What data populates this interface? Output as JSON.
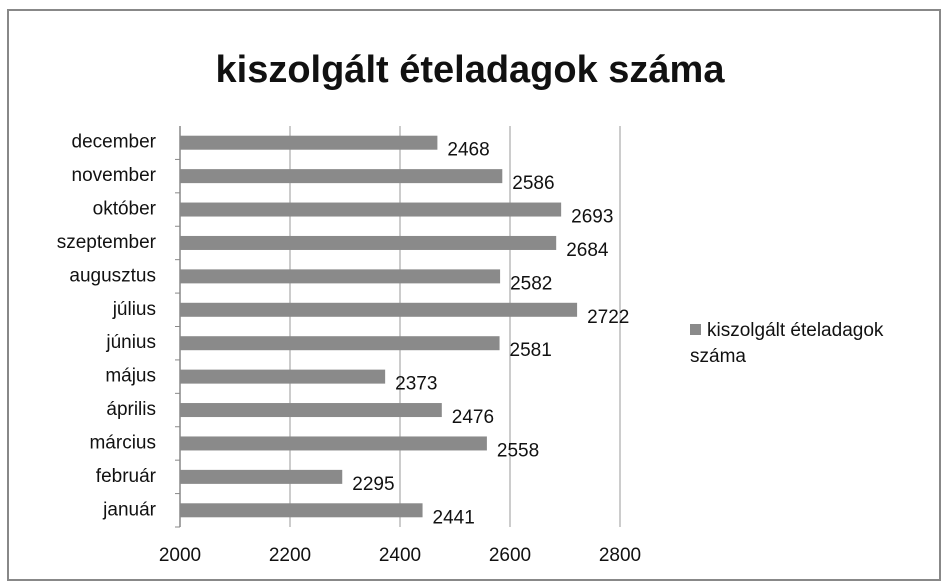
{
  "chart_data": {
    "type": "bar",
    "orientation": "horizontal",
    "title": "kiszolgált ételadagok száma",
    "categories": [
      "január",
      "február",
      "március",
      "április",
      "május",
      "június",
      "július",
      "augusztus",
      "szeptember",
      "október",
      "november",
      "december"
    ],
    "series": [
      {
        "name": "kiszolgált ételadagok száma",
        "color": "#8a8a8a",
        "values": [
          2441,
          2295,
          2558,
          2476,
          2373,
          2581,
          2722,
          2582,
          2684,
          2693,
          2586,
          2468
        ]
      }
    ],
    "xlim": [
      2000,
      2800
    ],
    "xticks": [
      2000,
      2200,
      2400,
      2600,
      2800
    ],
    "grid": true,
    "legend": "right"
  }
}
